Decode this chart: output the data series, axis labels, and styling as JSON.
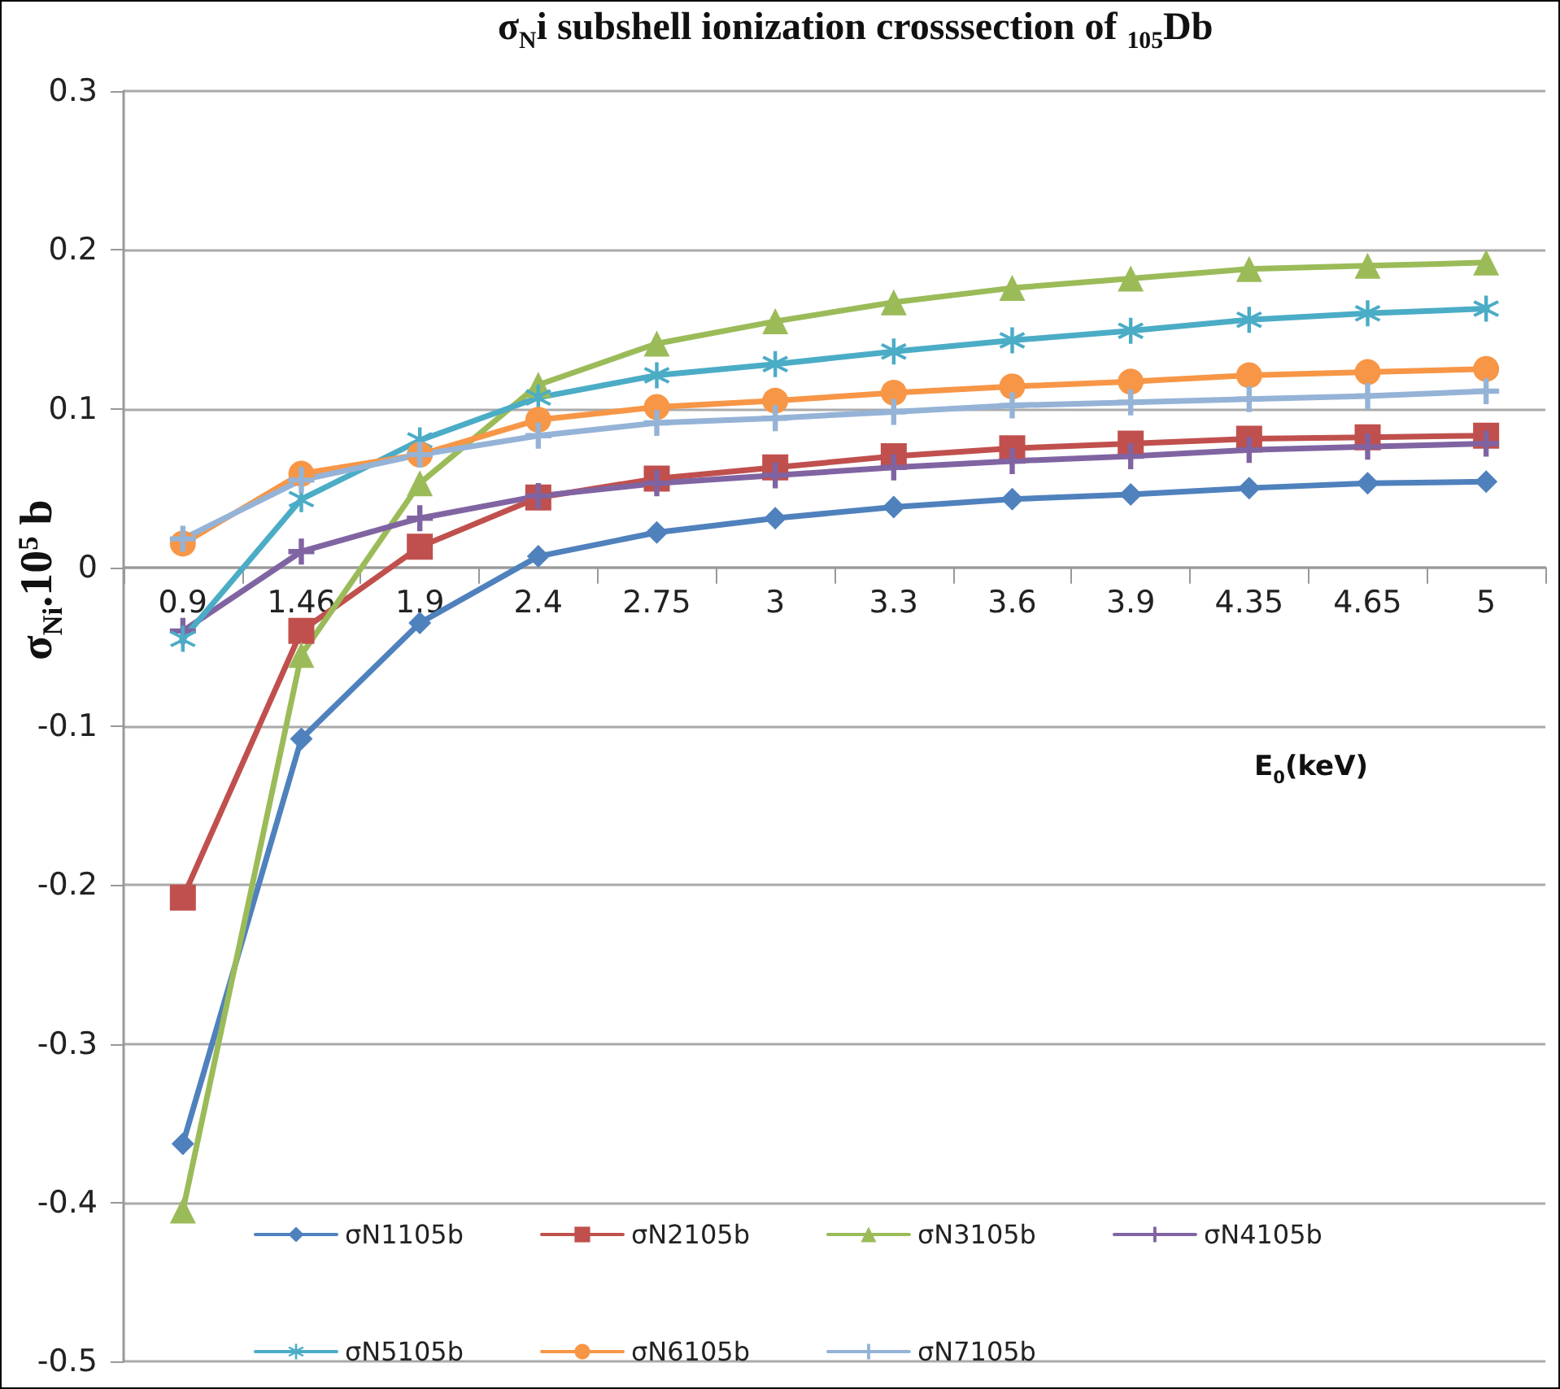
{
  "chart_data": {
    "type": "line",
    "title": "σ$_{N}$i subshell ionization crosssection of $_{105}$Db",
    "xlabel": "E$_{0}$(keV)",
    "ylabel": "σ$_{Ni}$.10$^{5}$ b",
    "categories": [
      "0.9",
      "1.46",
      "1.9",
      "2.4",
      "2.75",
      "3",
      "3.3",
      "3.6",
      "3.9",
      "4.35",
      "4.65",
      "5"
    ],
    "series": [
      {
        "name": "σN1105b",
        "color": "#4f81bd",
        "marker": "diamond",
        "values": [
          -0.363,
          -0.108,
          -0.035,
          0.007,
          0.022,
          0.031,
          0.038,
          0.043,
          0.046,
          0.05,
          0.053,
          0.054
        ]
      },
      {
        "name": "σN2105b",
        "color": "#c0504d",
        "marker": "square",
        "values": [
          -0.208,
          -0.04,
          0.013,
          0.044,
          0.056,
          0.063,
          0.07,
          0.075,
          0.078,
          0.081,
          0.082,
          0.083
        ]
      },
      {
        "name": "σN3105b",
        "color": "#9bbb59",
        "marker": "triangle",
        "values": [
          -0.405,
          -0.055,
          0.053,
          0.115,
          0.141,
          0.155,
          0.167,
          0.176,
          0.182,
          0.188,
          0.19,
          0.192
        ]
      },
      {
        "name": "σN4105b",
        "color": "#8064a2",
        "marker": "cross",
        "values": [
          -0.04,
          0.01,
          0.031,
          0.045,
          0.053,
          0.058,
          0.063,
          0.067,
          0.07,
          0.074,
          0.076,
          0.078
        ]
      },
      {
        "name": "σN5105b",
        "color": "#4bacc6",
        "marker": "star",
        "values": [
          -0.045,
          0.043,
          0.08,
          0.107,
          0.121,
          0.128,
          0.136,
          0.143,
          0.149,
          0.156,
          0.16,
          0.163
        ]
      },
      {
        "name": "σN6105b",
        "color": "#f79646",
        "marker": "circle",
        "values": [
          0.015,
          0.059,
          0.071,
          0.093,
          0.101,
          0.105,
          0.11,
          0.114,
          0.117,
          0.121,
          0.123,
          0.125
        ]
      },
      {
        "name": "σN7105b",
        "color": "#95b3d7",
        "marker": "cross",
        "values": [
          0.018,
          0.055,
          0.071,
          0.083,
          0.091,
          0.094,
          0.098,
          0.102,
          0.104,
          0.106,
          0.108,
          0.111
        ]
      }
    ],
    "ylim": [
      -0.5,
      0.3
    ],
    "yticks": [
      -0.5,
      -0.4,
      -0.3,
      -0.2,
      -0.1,
      0,
      0.1,
      0.2,
      0.3
    ],
    "grid": "y",
    "legend": "bottom",
    "line_style": "solid"
  }
}
